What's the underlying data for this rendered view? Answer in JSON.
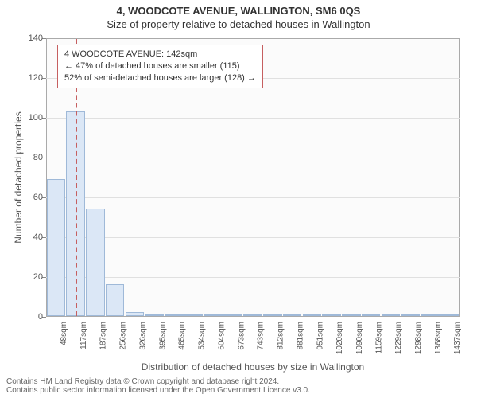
{
  "titles": {
    "line1": "4, WOODCOTE AVENUE, WALLINGTON, SM6 0QS",
    "line2": "Size of property relative to detached houses in Wallington"
  },
  "axes": {
    "ylabel": "Number of detached properties",
    "xlabel": "Distribution of detached houses by size in Wallington",
    "ylim": [
      0,
      140
    ],
    "ytick_step": 20,
    "background_color": "#fbfbfb",
    "grid_color": "#e0e0e0",
    "border_color": "#aaaaaa",
    "label_fontsize": 12,
    "tick_fontsize": 11
  },
  "chart": {
    "type": "histogram",
    "bar_fill": "#dbe7f6",
    "bar_stroke": "#9fb9d8",
    "bar_width": 0.95,
    "marker_line_color": "#c65f60",
    "marker_line_dash": "4,3",
    "bins": [
      {
        "label": "48sqm",
        "value": 69
      },
      {
        "label": "117sqm",
        "value": 103
      },
      {
        "label": "187sqm",
        "value": 54
      },
      {
        "label": "256sqm",
        "value": 16
      },
      {
        "label": "326sqm",
        "value": 2
      },
      {
        "label": "395sqm",
        "value": 1
      },
      {
        "label": "465sqm",
        "value": 0
      },
      {
        "label": "534sqm",
        "value": 0
      },
      {
        "label": "604sqm",
        "value": 0
      },
      {
        "label": "673sqm",
        "value": 0
      },
      {
        "label": "743sqm",
        "value": 0
      },
      {
        "label": "812sqm",
        "value": 0
      },
      {
        "label": "881sqm",
        "value": 0
      },
      {
        "label": "951sqm",
        "value": 0
      },
      {
        "label": "1020sqm",
        "value": 0
      },
      {
        "label": "1090sqm",
        "value": 0
      },
      {
        "label": "1159sqm",
        "value": 0
      },
      {
        "label": "1229sqm",
        "value": 0
      },
      {
        "label": "1298sqm",
        "value": 0
      },
      {
        "label": "1368sqm",
        "value": 1
      },
      {
        "label": "1437sqm",
        "value": 0
      }
    ],
    "marker_bin_index": 1
  },
  "annotation": {
    "lines": [
      "4 WOODCOTE AVENUE: 142sqm",
      "← 47% of detached houses are smaller (115)",
      "52% of semi-detached houses are larger (128) →"
    ],
    "border_color": "#c65f60",
    "background_color": "#ffffff",
    "fontsize": 11
  },
  "footer": {
    "line1": "Contains HM Land Registry data © Crown copyright and database right 2024.",
    "line2": "Contains public sector information licensed under the Open Government Licence v3.0."
  }
}
